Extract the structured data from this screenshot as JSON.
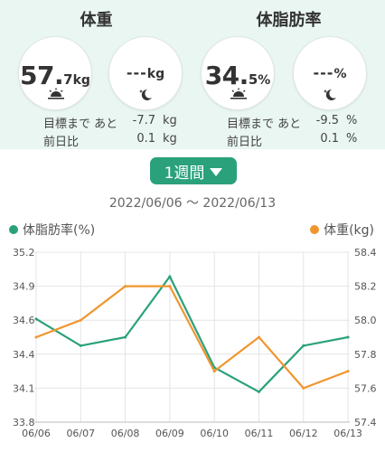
{
  "weight": {
    "title": "体重",
    "morning": {
      "int": "57.",
      "dec": "7",
      "unit": "kg"
    },
    "evening": {
      "value": "---",
      "unit": "kg"
    },
    "goal_label": "目標まで あと",
    "goal_value": "-7.7",
    "goal_unit": "kg",
    "prev_label": "前日比",
    "prev_value": "0.1",
    "prev_unit": "kg"
  },
  "bodyfat": {
    "title": "体脂肪率",
    "morning": {
      "int": "34.",
      "dec": "5",
      "unit": "%"
    },
    "evening": {
      "value": "---",
      "unit": "%"
    },
    "goal_label": "目標まで あと",
    "goal_value": "-9.5",
    "goal_unit": "%",
    "prev_label": "前日比",
    "prev_value": "0.1",
    "prev_unit": "%"
  },
  "period_button": "1週間",
  "date_range": "2022/06/06 〜 2022/06/13",
  "legend": {
    "left": "体脂肪率(%)",
    "right": "体重(kg)"
  },
  "colors": {
    "green": "#2aa17b",
    "orange": "#f0962e",
    "panel": "#e9f6f1"
  },
  "icons": {
    "morning": "sunrise-icon",
    "evening": "moon-icon",
    "dropdown": "caret-down-icon"
  },
  "chart_data": {
    "type": "line",
    "categories": [
      "06/06",
      "06/07",
      "06/08",
      "06/09",
      "06/10",
      "06/11",
      "06/12",
      "06/13"
    ],
    "series": [
      {
        "name": "体脂肪率(%)",
        "axis": "left",
        "color": "#2aa17b",
        "values": [
          34.65,
          34.43,
          34.5,
          35.0,
          34.25,
          34.05,
          34.43,
          34.5
        ]
      },
      {
        "name": "体重(kg)",
        "axis": "right",
        "color": "#f0962e",
        "values": [
          57.9,
          58.0,
          58.2,
          58.2,
          57.7,
          57.9,
          57.6,
          57.7
        ]
      }
    ],
    "y_left": {
      "ticks": [
        "35.2",
        "34.9",
        "34.6",
        "34.4",
        "34.1",
        "33.8"
      ],
      "min": 33.8,
      "max": 35.2
    },
    "y_right": {
      "ticks": [
        "58.4",
        "58.2",
        "58.0",
        "57.8",
        "57.6",
        "57.4"
      ],
      "min": 57.4,
      "max": 58.4
    },
    "grid": true
  }
}
